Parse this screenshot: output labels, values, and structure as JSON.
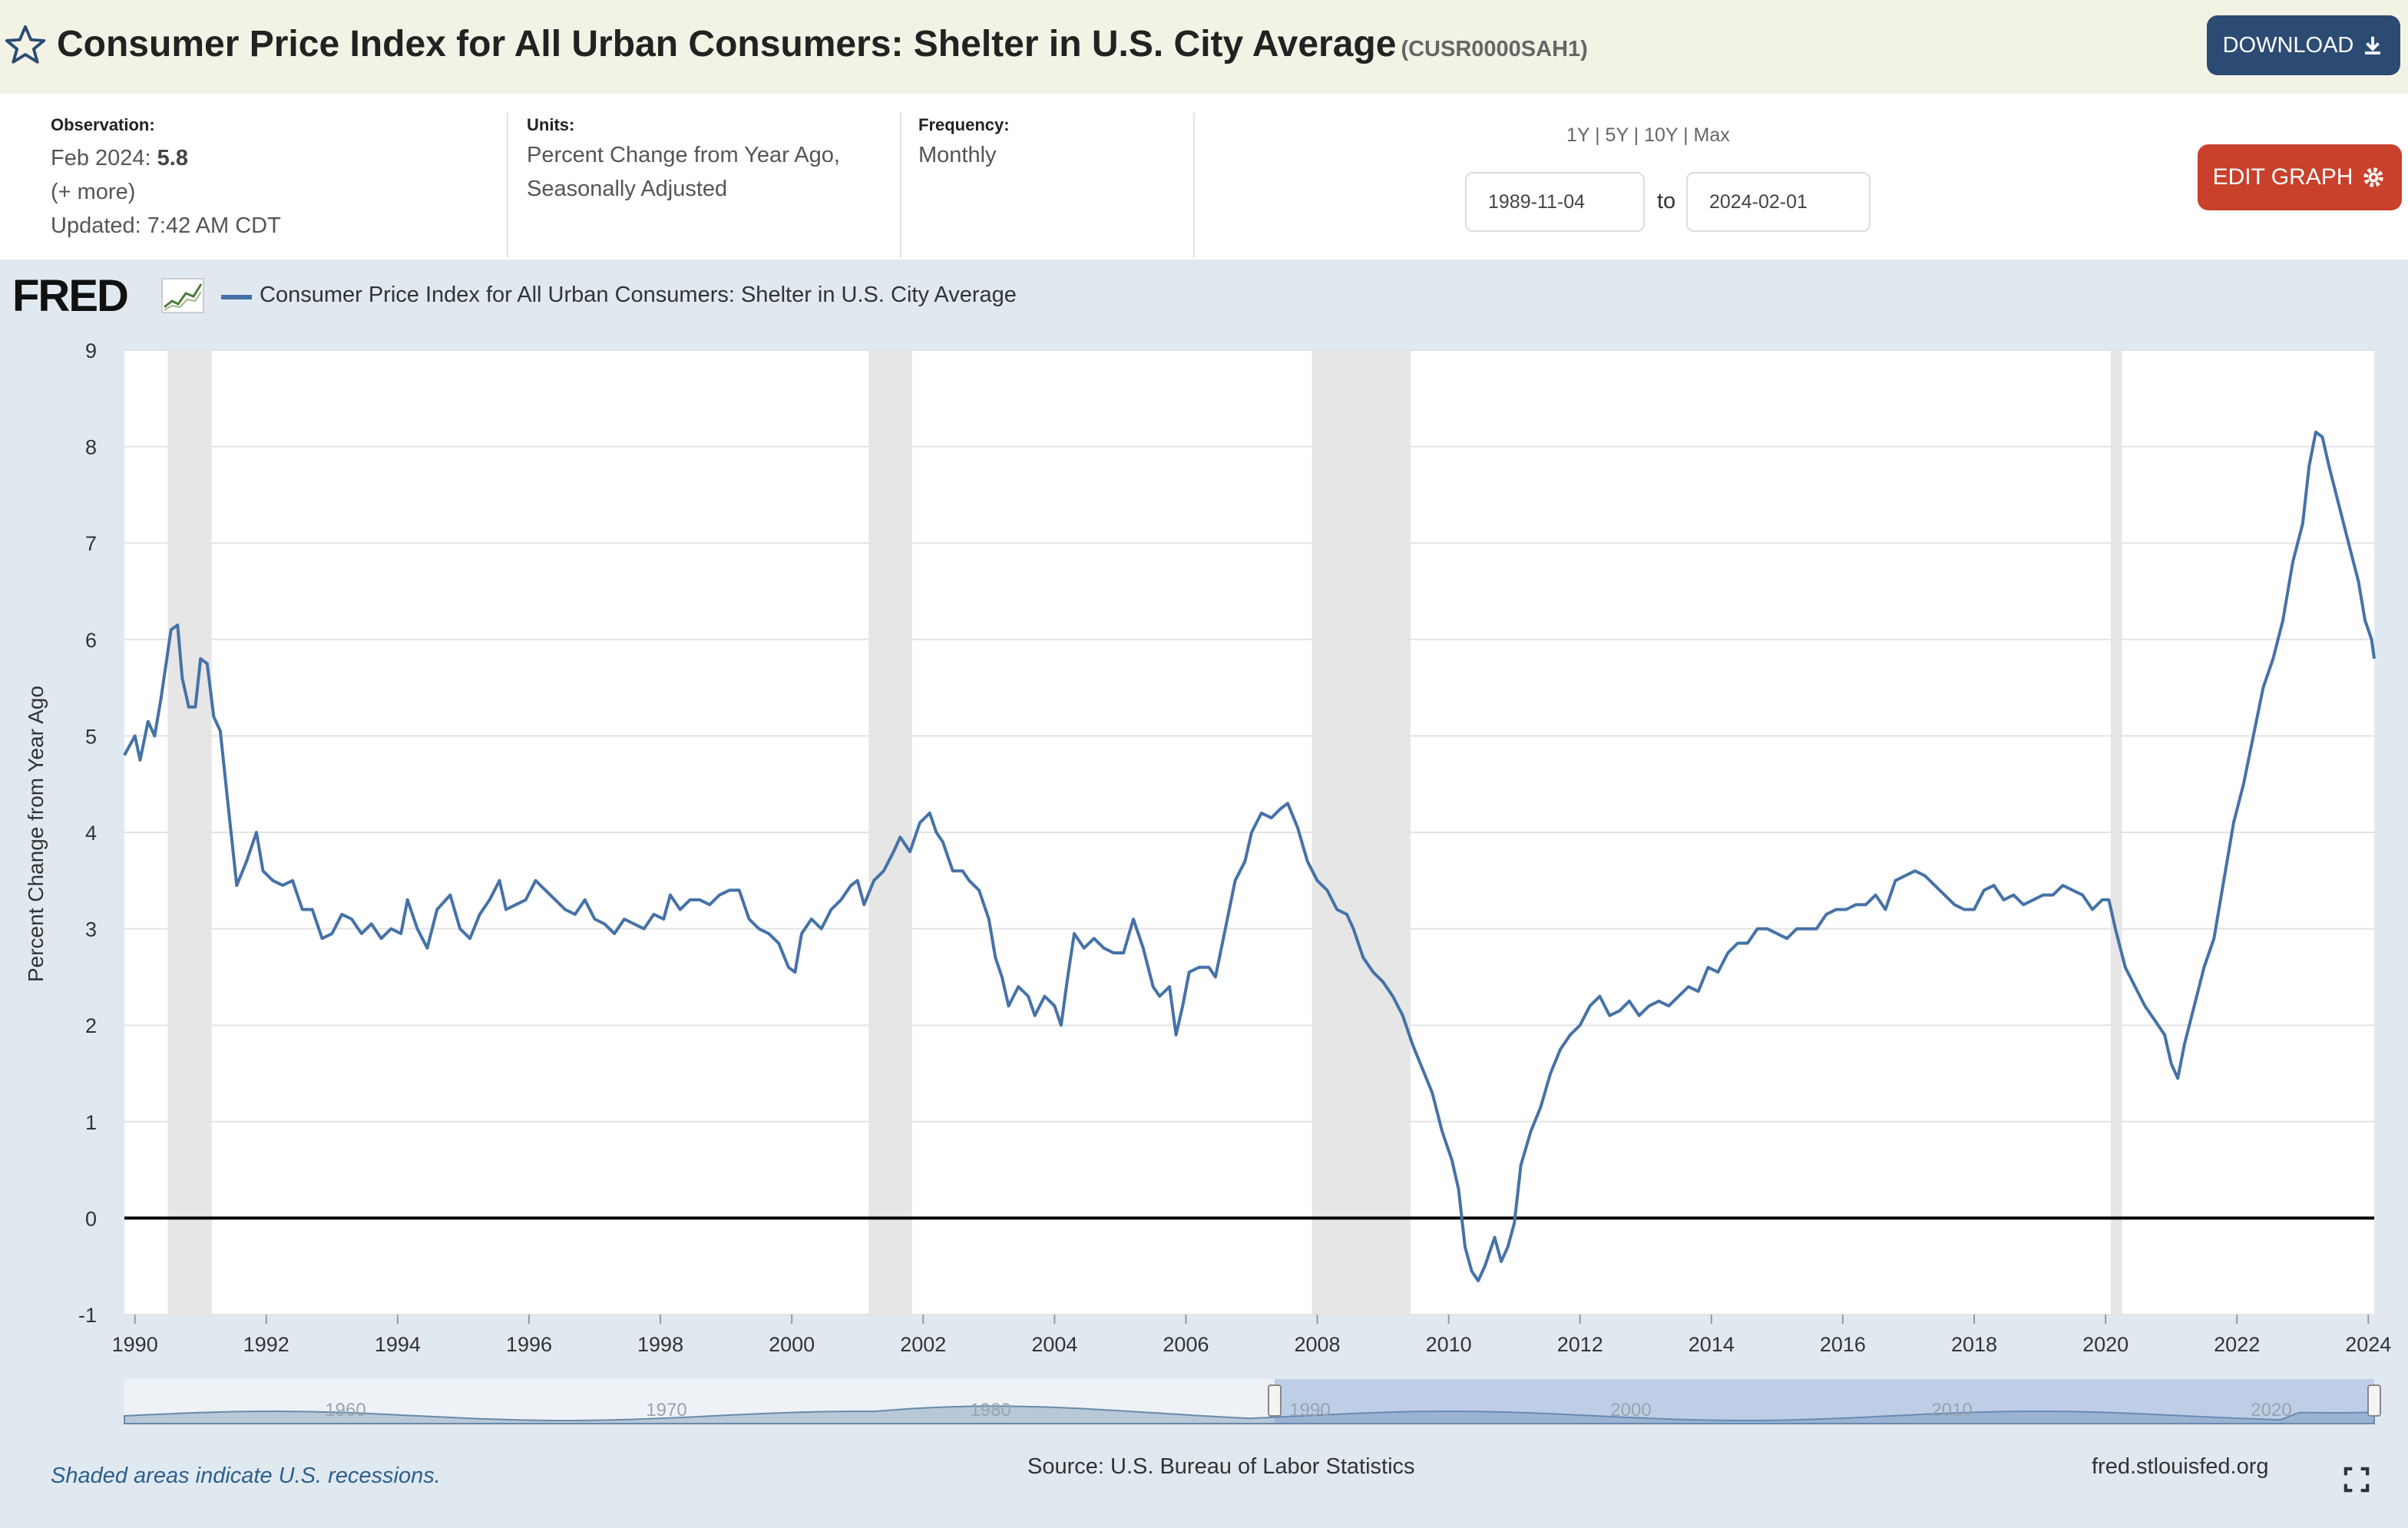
{
  "header": {
    "title": "Consumer Price Index for All Urban Consumers: Shelter in U.S. City Average",
    "series_code": "(CUSR0000SAH1)",
    "download_label": "DOWNLOAD",
    "edit_label": "EDIT GRAPH"
  },
  "info": {
    "observation_label": "Observation:",
    "observation_date": "Feb 2024:",
    "observation_value": "5.8",
    "more": "(+ more)",
    "updated": "Updated: 7:42 AM CDT",
    "units_label": "Units:",
    "units_line1": "Percent Change from Year Ago,",
    "units_line2": "Seasonally Adjusted",
    "frequency_label": "Frequency:",
    "frequency_value": "Monthly",
    "range_1y": "1Y",
    "range_5y": "5Y",
    "range_10y": "10Y",
    "range_max": "Max",
    "range_sep": "|",
    "date_from": "1989-11-04",
    "date_to_word": "to",
    "date_to": "2024-02-01"
  },
  "footer": {
    "shaded_note": "Shaded areas indicate U.S. recessions.",
    "source": "Source: U.S. Bureau of Labor Statistics",
    "site": "fred.stlouisfed.org"
  },
  "fred_logo_text": "FRED",
  "colors": {
    "series": "#4572a7",
    "recession": "#e6e6e6",
    "header_bg": "#f2f3e5",
    "panel_bg": "#e1e9f0",
    "download": "#2c4b73",
    "edit": "#c9402b"
  },
  "chart_data": {
    "type": "line",
    "title": "Consumer Price Index for All Urban Consumers: Shelter in U.S. City Average",
    "ylabel": "Percent Change from Year Ago",
    "xlabel": "",
    "ylim": [
      -1,
      9
    ],
    "xlim": [
      1989.84,
      2024.09
    ],
    "yticks": [
      -1,
      0,
      1,
      2,
      3,
      4,
      5,
      6,
      7,
      8,
      9
    ],
    "xticks": [
      1990,
      1992,
      1994,
      1996,
      1998,
      2000,
      2002,
      2004,
      2006,
      2008,
      2010,
      2012,
      2014,
      2016,
      2018,
      2020,
      2022,
      2024
    ],
    "grid": true,
    "legend": "top-left",
    "recessions": [
      [
        1990.5,
        1991.17
      ],
      [
        2001.17,
        2001.83
      ],
      [
        2007.92,
        2009.42
      ],
      [
        2020.08,
        2020.25
      ]
    ],
    "series": [
      {
        "name": "Consumer Price Index for All Urban Consumers: Shelter in U.S. City Average",
        "points": [
          [
            1989.84,
            4.8
          ],
          [
            1990.0,
            5.0
          ],
          [
            1990.08,
            4.75
          ],
          [
            1990.2,
            5.15
          ],
          [
            1990.3,
            5.0
          ],
          [
            1990.4,
            5.4
          ],
          [
            1990.55,
            6.1
          ],
          [
            1990.65,
            6.15
          ],
          [
            1990.72,
            5.6
          ],
          [
            1990.82,
            5.3
          ],
          [
            1990.92,
            5.3
          ],
          [
            1991.0,
            5.8
          ],
          [
            1991.1,
            5.75
          ],
          [
            1991.2,
            5.2
          ],
          [
            1991.3,
            5.05
          ],
          [
            1991.4,
            4.4
          ],
          [
            1991.55,
            3.45
          ],
          [
            1991.7,
            3.7
          ],
          [
            1991.85,
            4.0
          ],
          [
            1991.95,
            3.6
          ],
          [
            1992.1,
            3.5
          ],
          [
            1992.25,
            3.45
          ],
          [
            1992.4,
            3.5
          ],
          [
            1992.55,
            3.2
          ],
          [
            1992.7,
            3.2
          ],
          [
            1992.85,
            2.9
          ],
          [
            1993.0,
            2.95
          ],
          [
            1993.15,
            3.15
          ],
          [
            1993.3,
            3.1
          ],
          [
            1993.45,
            2.95
          ],
          [
            1993.6,
            3.05
          ],
          [
            1993.75,
            2.9
          ],
          [
            1993.9,
            3.0
          ],
          [
            1994.05,
            2.95
          ],
          [
            1994.15,
            3.3
          ],
          [
            1994.3,
            3.0
          ],
          [
            1994.45,
            2.8
          ],
          [
            1994.6,
            3.2
          ],
          [
            1994.8,
            3.35
          ],
          [
            1994.95,
            3.0
          ],
          [
            1995.1,
            2.9
          ],
          [
            1995.25,
            3.15
          ],
          [
            1995.4,
            3.3
          ],
          [
            1995.55,
            3.5
          ],
          [
            1995.65,
            3.2
          ],
          [
            1995.8,
            3.25
          ],
          [
            1995.95,
            3.3
          ],
          [
            1996.1,
            3.5
          ],
          [
            1996.25,
            3.4
          ],
          [
            1996.4,
            3.3
          ],
          [
            1996.55,
            3.2
          ],
          [
            1996.7,
            3.15
          ],
          [
            1996.85,
            3.3
          ],
          [
            1997.0,
            3.1
          ],
          [
            1997.15,
            3.05
          ],
          [
            1997.3,
            2.95
          ],
          [
            1997.45,
            3.1
          ],
          [
            1997.6,
            3.05
          ],
          [
            1997.75,
            3.0
          ],
          [
            1997.9,
            3.15
          ],
          [
            1998.05,
            3.1
          ],
          [
            1998.15,
            3.35
          ],
          [
            1998.3,
            3.2
          ],
          [
            1998.45,
            3.3
          ],
          [
            1998.6,
            3.3
          ],
          [
            1998.75,
            3.25
          ],
          [
            1998.9,
            3.35
          ],
          [
            1999.05,
            3.4
          ],
          [
            1999.2,
            3.4
          ],
          [
            1999.35,
            3.1
          ],
          [
            1999.5,
            3.0
          ],
          [
            1999.65,
            2.95
          ],
          [
            1999.8,
            2.85
          ],
          [
            1999.95,
            2.6
          ],
          [
            2000.05,
            2.55
          ],
          [
            2000.15,
            2.95
          ],
          [
            2000.3,
            3.1
          ],
          [
            2000.45,
            3.0
          ],
          [
            2000.6,
            3.2
          ],
          [
            2000.75,
            3.3
          ],
          [
            2000.9,
            3.45
          ],
          [
            2001.0,
            3.5
          ],
          [
            2001.1,
            3.25
          ],
          [
            2001.25,
            3.5
          ],
          [
            2001.4,
            3.6
          ],
          [
            2001.55,
            3.8
          ],
          [
            2001.65,
            3.95
          ],
          [
            2001.8,
            3.8
          ],
          [
            2001.95,
            4.1
          ],
          [
            2002.1,
            4.2
          ],
          [
            2002.2,
            4.0
          ],
          [
            2002.3,
            3.9
          ],
          [
            2002.45,
            3.6
          ],
          [
            2002.6,
            3.6
          ],
          [
            2002.7,
            3.5
          ],
          [
            2002.85,
            3.4
          ],
          [
            2003.0,
            3.1
          ],
          [
            2003.1,
            2.7
          ],
          [
            2003.2,
            2.5
          ],
          [
            2003.3,
            2.2
          ],
          [
            2003.45,
            2.4
          ],
          [
            2003.6,
            2.3
          ],
          [
            2003.7,
            2.1
          ],
          [
            2003.85,
            2.3
          ],
          [
            2004.0,
            2.2
          ],
          [
            2004.1,
            2.0
          ],
          [
            2004.2,
            2.5
          ],
          [
            2004.3,
            2.95
          ],
          [
            2004.45,
            2.8
          ],
          [
            2004.6,
            2.9
          ],
          [
            2004.75,
            2.8
          ],
          [
            2004.9,
            2.75
          ],
          [
            2005.05,
            2.75
          ],
          [
            2005.2,
            3.1
          ],
          [
            2005.35,
            2.8
          ],
          [
            2005.5,
            2.4
          ],
          [
            2005.6,
            2.3
          ],
          [
            2005.75,
            2.4
          ],
          [
            2005.85,
            1.9
          ],
          [
            2005.95,
            2.2
          ],
          [
            2006.05,
            2.55
          ],
          [
            2006.2,
            2.6
          ],
          [
            2006.35,
            2.6
          ],
          [
            2006.45,
            2.5
          ],
          [
            2006.6,
            3.0
          ],
          [
            2006.75,
            3.5
          ],
          [
            2006.9,
            3.7
          ],
          [
            2007.0,
            4.0
          ],
          [
            2007.15,
            4.2
          ],
          [
            2007.3,
            4.15
          ],
          [
            2007.45,
            4.25
          ],
          [
            2007.55,
            4.3
          ],
          [
            2007.7,
            4.05
          ],
          [
            2007.85,
            3.7
          ],
          [
            2008.0,
            3.5
          ],
          [
            2008.15,
            3.4
          ],
          [
            2008.3,
            3.2
          ],
          [
            2008.45,
            3.15
          ],
          [
            2008.55,
            3.0
          ],
          [
            2008.7,
            2.7
          ],
          [
            2008.85,
            2.55
          ],
          [
            2009.0,
            2.45
          ],
          [
            2009.15,
            2.3
          ],
          [
            2009.3,
            2.1
          ],
          [
            2009.45,
            1.8
          ],
          [
            2009.6,
            1.55
          ],
          [
            2009.75,
            1.3
          ],
          [
            2009.9,
            0.9
          ],
          [
            2010.05,
            0.6
          ],
          [
            2010.15,
            0.3
          ],
          [
            2010.25,
            -0.3
          ],
          [
            2010.35,
            -0.55
          ],
          [
            2010.45,
            -0.65
          ],
          [
            2010.55,
            -0.5
          ],
          [
            2010.7,
            -0.2
          ],
          [
            2010.8,
            -0.45
          ],
          [
            2010.9,
            -0.3
          ],
          [
            2011.0,
            -0.05
          ],
          [
            2011.1,
            0.55
          ],
          [
            2011.25,
            0.9
          ],
          [
            2011.4,
            1.15
          ],
          [
            2011.55,
            1.5
          ],
          [
            2011.7,
            1.75
          ],
          [
            2011.85,
            1.9
          ],
          [
            2012.0,
            2.0
          ],
          [
            2012.15,
            2.2
          ],
          [
            2012.3,
            2.3
          ],
          [
            2012.45,
            2.1
          ],
          [
            2012.6,
            2.15
          ],
          [
            2012.75,
            2.25
          ],
          [
            2012.9,
            2.1
          ],
          [
            2013.05,
            2.2
          ],
          [
            2013.2,
            2.25
          ],
          [
            2013.35,
            2.2
          ],
          [
            2013.5,
            2.3
          ],
          [
            2013.65,
            2.4
          ],
          [
            2013.8,
            2.35
          ],
          [
            2013.95,
            2.6
          ],
          [
            2014.1,
            2.55
          ],
          [
            2014.25,
            2.75
          ],
          [
            2014.4,
            2.85
          ],
          [
            2014.55,
            2.85
          ],
          [
            2014.7,
            3.0
          ],
          [
            2014.85,
            3.0
          ],
          [
            2015.0,
            2.95
          ],
          [
            2015.15,
            2.9
          ],
          [
            2015.3,
            3.0
          ],
          [
            2015.45,
            3.0
          ],
          [
            2015.6,
            3.0
          ],
          [
            2015.75,
            3.15
          ],
          [
            2015.9,
            3.2
          ],
          [
            2016.05,
            3.2
          ],
          [
            2016.2,
            3.25
          ],
          [
            2016.35,
            3.25
          ],
          [
            2016.5,
            3.35
          ],
          [
            2016.65,
            3.2
          ],
          [
            2016.8,
            3.5
          ],
          [
            2016.95,
            3.55
          ],
          [
            2017.1,
            3.6
          ],
          [
            2017.25,
            3.55
          ],
          [
            2017.4,
            3.45
          ],
          [
            2017.55,
            3.35
          ],
          [
            2017.7,
            3.25
          ],
          [
            2017.85,
            3.2
          ],
          [
            2018.0,
            3.2
          ],
          [
            2018.15,
            3.4
          ],
          [
            2018.3,
            3.45
          ],
          [
            2018.45,
            3.3
          ],
          [
            2018.6,
            3.35
          ],
          [
            2018.75,
            3.25
          ],
          [
            2018.9,
            3.3
          ],
          [
            2019.05,
            3.35
          ],
          [
            2019.2,
            3.35
          ],
          [
            2019.35,
            3.45
          ],
          [
            2019.5,
            3.4
          ],
          [
            2019.65,
            3.35
          ],
          [
            2019.8,
            3.2
          ],
          [
            2019.95,
            3.3
          ],
          [
            2020.05,
            3.3
          ],
          [
            2020.15,
            3.0
          ],
          [
            2020.3,
            2.6
          ],
          [
            2020.45,
            2.4
          ],
          [
            2020.6,
            2.2
          ],
          [
            2020.75,
            2.05
          ],
          [
            2020.9,
            1.9
          ],
          [
            2021.0,
            1.6
          ],
          [
            2021.1,
            1.45
          ],
          [
            2021.2,
            1.8
          ],
          [
            2021.35,
            2.2
          ],
          [
            2021.5,
            2.6
          ],
          [
            2021.65,
            2.9
          ],
          [
            2021.8,
            3.5
          ],
          [
            2021.95,
            4.1
          ],
          [
            2022.1,
            4.5
          ],
          [
            2022.25,
            5.0
          ],
          [
            2022.4,
            5.5
          ],
          [
            2022.55,
            5.8
          ],
          [
            2022.7,
            6.2
          ],
          [
            2022.85,
            6.8
          ],
          [
            2023.0,
            7.2
          ],
          [
            2023.1,
            7.8
          ],
          [
            2023.2,
            8.15
          ],
          [
            2023.3,
            8.1
          ],
          [
            2023.4,
            7.8
          ],
          [
            2023.55,
            7.4
          ],
          [
            2023.7,
            7.0
          ],
          [
            2023.85,
            6.6
          ],
          [
            2023.95,
            6.2
          ],
          [
            2024.05,
            6.0
          ],
          [
            2024.09,
            5.8
          ]
        ]
      }
    ]
  },
  "navigator": {
    "labels": [
      "1960",
      "1970",
      "1980",
      "1990",
      "2000",
      "2010",
      "2020"
    ]
  }
}
